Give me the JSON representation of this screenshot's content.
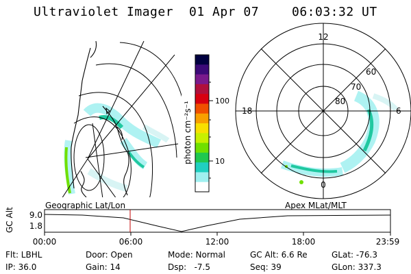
{
  "header": {
    "title": "Ultraviolet Imager",
    "date": "01 Apr 07",
    "time": "06:03:32 UT"
  },
  "colorbar": {
    "label": "photon cm⁻²s⁻¹",
    "ticks": [
      "100",
      "10"
    ],
    "colors": [
      "#000040",
      "#3c0a78",
      "#7a1a8c",
      "#b0103c",
      "#d80010",
      "#f05000",
      "#f8a000",
      "#f8e000",
      "#c8f000",
      "#70e000",
      "#20c850",
      "#20d0c0",
      "#a0f0f0",
      "#ffffff"
    ]
  },
  "polar": {
    "mlt_labels": {
      "top": "12",
      "left": "18",
      "right": "6",
      "bottom": "0"
    },
    "lat_labels": [
      "60",
      "70",
      "80"
    ]
  },
  "timeline": {
    "left_label": "Geographic Lat/Lon",
    "right_label": "Apex MLat/MLT",
    "y_axis_label": "GC Alt",
    "y_ticks": [
      "9.0",
      "1.8"
    ],
    "x_ticks": [
      "00:00",
      "06:00",
      "12:00",
      "18:00",
      "23:59"
    ]
  },
  "info": {
    "filter": "Flt: LBHL",
    "door": "Door: Open",
    "mode": "Mode: Normal",
    "gc_alt": "GC Alt: 6.6 Re",
    "glat": "GLat: -76.3",
    "ip": "IP: 36.0",
    "gain": "Gain: 14",
    "dsp": "Dsp:   -7.5",
    "seq": "Seq: 39",
    "glon": "GLon: 337.3"
  }
}
